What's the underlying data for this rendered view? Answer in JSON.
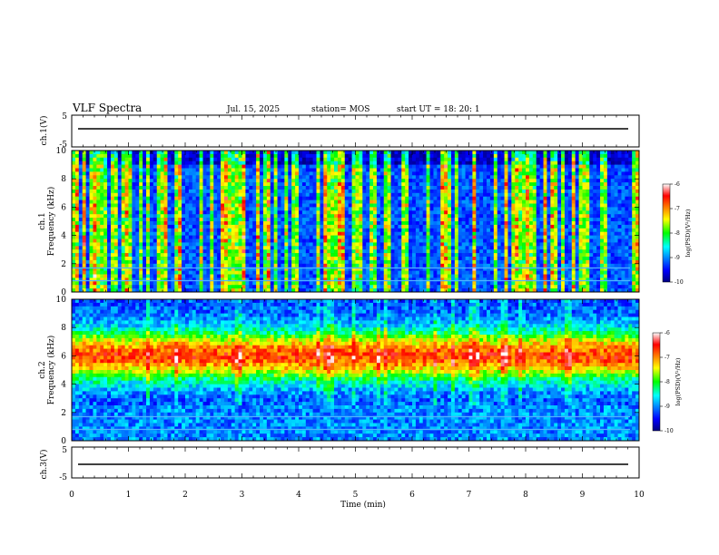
{
  "header": {
    "title": "VLF Spectra",
    "date": "Jul. 15, 2025",
    "station": "station= MOS",
    "start": "start UT = 18: 20: 1"
  },
  "chart_data": [
    {
      "type": "line",
      "name": "ch1-waveform",
      "ylabel": "ch.1(V)",
      "ylim": [
        -5,
        5
      ],
      "yticks": [
        "5",
        "-5"
      ],
      "xlim": [
        0,
        10
      ],
      "trace_level": 0
    },
    {
      "type": "heatmap",
      "name": "ch1-spectrogram",
      "ylabel": "ch.1\nFrequency (kHz)",
      "ylim": [
        0,
        10
      ],
      "yticks": [
        "0",
        "2",
        "4",
        "6",
        "8",
        "10"
      ],
      "xlim": [
        0,
        10
      ],
      "colorbar": {
        "label": "log(PSD)(V²/Hz)",
        "range": [
          -10,
          -6
        ],
        "ticks": [
          "-6",
          "-7",
          "-8",
          "-9",
          "-10"
        ]
      }
    },
    {
      "type": "heatmap",
      "name": "ch2-spectrogram",
      "ylabel": "ch.2\nFrequency (kHz)",
      "ylim": [
        0,
        10
      ],
      "yticks": [
        "0",
        "2",
        "4",
        "6",
        "8",
        "10"
      ],
      "xlim": [
        0,
        10
      ],
      "colorbar": {
        "label": "log(PSD)(V²/Hz)",
        "range": [
          -10,
          -6
        ],
        "ticks": [
          "-6",
          "-7",
          "-8",
          "-9",
          "-10"
        ]
      }
    },
    {
      "type": "line",
      "name": "ch3-waveform",
      "ylabel": "ch.3(V)",
      "ylim": [
        -5,
        5
      ],
      "yticks": [
        "5",
        "-5"
      ],
      "xlim": [
        0,
        10
      ],
      "xlabel": "Time (min)",
      "xticks": [
        "0",
        "1",
        "2",
        "3",
        "4",
        "5",
        "6",
        "7",
        "8",
        "9",
        "10"
      ],
      "trace_level": 0
    }
  ]
}
